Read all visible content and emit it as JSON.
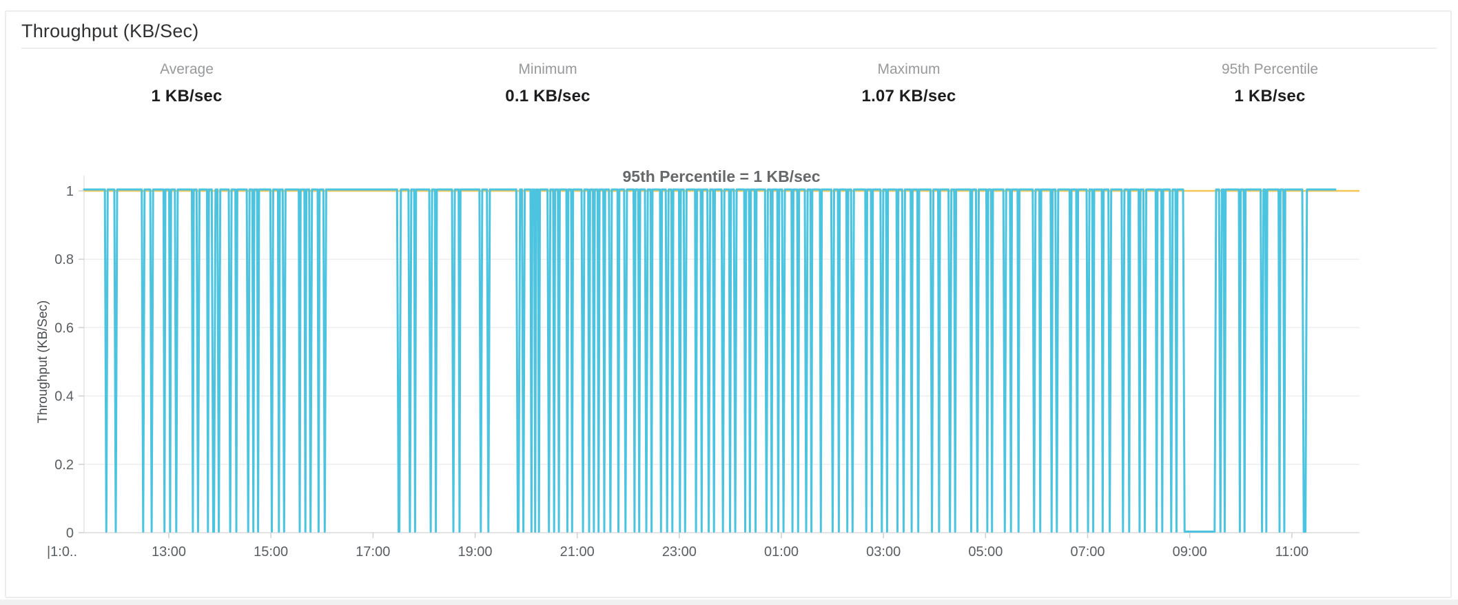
{
  "card": {
    "title": "Throughput (KB/Sec)"
  },
  "stats": [
    {
      "label": "Average",
      "value": "1 KB/sec"
    },
    {
      "label": "Minimum",
      "value": "0.1 KB/sec"
    },
    {
      "label": "Maximum",
      "value": "1.07 KB/sec"
    },
    {
      "label": "95th Percentile",
      "value": "1 KB/sec"
    }
  ],
  "chart_data": {
    "type": "line",
    "title": "",
    "annotation": "95th Percentile = 1 KB/sec",
    "xlabel": "",
    "ylabel": "Throughput (KB/Sec)",
    "ylim": [
      0,
      1.05
    ],
    "grid": "horizontal",
    "legend_position": "none",
    "y_ticks": [
      "1",
      "0.8",
      "0.6",
      "0.4",
      "0.2",
      "0"
    ],
    "y_tick_values": [
      1,
      0.8,
      0.6,
      0.4,
      0.2,
      0
    ],
    "x_ticks": [
      "|1:0..",
      "13:00",
      "15:00",
      "17:00",
      "19:00",
      "21:00",
      "23:00",
      "01:00",
      "03:00",
      "05:00",
      "07:00",
      "09:00",
      "11:00"
    ],
    "x_span_hours": 25,
    "percentile_line": {
      "value": 1,
      "color": "#f4c654"
    },
    "series": [
      {
        "name": "Throughput",
        "unit": "KB/sec",
        "color": "#4cc4e0",
        "high_value": 1.0,
        "low_value": 0.1,
        "description": "square-wave: alternates between ~1 KB/sec and ~0.1 KB/sec; runs are [minutes_at_high, minutes_at_low] pairs from ~11:04 to ~11:50 next day",
        "runs": [
          [
            22,
            3
          ],
          [
            7,
            3
          ],
          [
            26,
            3
          ],
          [
            6,
            3
          ],
          [
            11,
            2
          ],
          [
            4,
            2
          ],
          [
            4,
            3
          ],
          [
            15,
            2
          ],
          [
            3,
            3
          ],
          [
            8,
            2
          ],
          [
            3,
            4
          ],
          [
            2,
            3
          ],
          [
            9,
            3
          ],
          [
            4,
            2
          ],
          [
            10,
            3
          ],
          [
            3,
            2
          ],
          [
            3,
            2
          ],
          [
            12,
            3
          ],
          [
            5,
            2
          ],
          [
            3,
            3
          ],
          [
            14,
            2
          ],
          [
            4,
            2
          ],
          [
            3,
            3
          ],
          [
            6,
            2
          ],
          [
            4,
            3
          ],
          [
            75,
            4
          ],
          [
            8,
            3
          ],
          [
            3,
            2
          ],
          [
            14,
            3
          ],
          [
            3,
            2
          ],
          [
            16,
            3
          ],
          [
            4,
            2
          ],
          [
            20,
            3
          ],
          [
            5,
            3
          ],
          [
            28,
            4
          ],
          [
            2,
            3
          ],
          [
            6,
            2
          ],
          [
            2,
            2
          ],
          [
            2,
            2
          ],
          [
            8,
            3
          ],
          [
            3,
            2
          ],
          [
            3,
            2
          ],
          [
            7,
            2
          ],
          [
            3,
            2
          ],
          [
            9,
            3
          ],
          [
            4,
            2
          ],
          [
            3,
            2
          ],
          [
            3,
            2
          ],
          [
            4,
            2
          ],
          [
            4,
            3
          ],
          [
            6,
            2
          ],
          [
            5,
            3
          ],
          [
            7,
            2
          ],
          [
            3,
            2
          ],
          [
            5,
            3
          ],
          [
            3,
            2
          ],
          [
            8,
            2
          ],
          [
            4,
            3
          ],
          [
            3,
            2
          ],
          [
            6,
            2
          ],
          [
            3,
            3
          ],
          [
            9,
            2
          ],
          [
            4,
            2
          ],
          [
            5,
            3
          ],
          [
            3,
            2
          ],
          [
            7,
            3
          ],
          [
            5,
            2
          ],
          [
            3,
            3
          ],
          [
            8,
            2
          ],
          [
            3,
            2
          ],
          [
            4,
            2
          ],
          [
            9,
            3
          ],
          [
            3,
            2
          ],
          [
            5,
            2
          ],
          [
            3,
            3
          ],
          [
            7,
            2
          ],
          [
            4,
            2
          ],
          [
            6,
            3
          ],
          [
            3,
            2
          ],
          [
            8,
            2
          ],
          [
            10,
            3
          ],
          [
            4,
            2
          ],
          [
            7,
            2
          ],
          [
            3,
            3
          ],
          [
            12,
            2
          ],
          [
            4,
            2
          ],
          [
            8,
            3
          ],
          [
            3,
            2
          ],
          [
            9,
            2
          ],
          [
            4,
            3
          ],
          [
            6,
            2
          ],
          [
            5,
            2
          ],
          [
            12,
            3
          ],
          [
            5,
            2
          ],
          [
            9,
            3
          ],
          [
            3,
            2
          ],
          [
            15,
            2
          ],
          [
            4,
            3
          ],
          [
            8,
            2
          ],
          [
            3,
            2
          ],
          [
            11,
            3
          ],
          [
            4,
            2
          ],
          [
            6,
            2
          ],
          [
            14,
            3
          ],
          [
            4,
            2
          ],
          [
            10,
            2
          ],
          [
            3,
            3
          ],
          [
            12,
            2
          ],
          [
            5,
            2
          ],
          [
            9,
            3
          ],
          [
            3,
            2
          ],
          [
            8,
            2
          ],
          [
            5,
            3
          ],
          [
            11,
            3
          ],
          [
            4,
            2
          ],
          [
            9,
            2
          ],
          [
            3,
            3
          ],
          [
            10,
            2
          ],
          [
            4,
            2
          ],
          [
            7,
            3
          ],
          [
            3,
            2
          ],
          [
            6,
            35
          ],
          [
            3,
            3
          ],
          [
            2,
            2
          ],
          [
            14,
            2
          ],
          [
            3,
            2
          ],
          [
            16,
            3
          ],
          [
            2,
            2
          ],
          [
            12,
            2
          ],
          [
            3,
            2
          ],
          [
            18,
            5
          ],
          [
            30,
            0
          ]
        ]
      }
    ]
  },
  "colors": {
    "series_line": "#4cc4e0",
    "percentile_line": "#f4c654",
    "grid_line": "#eeeeee",
    "axis_line": "#e3e3e3",
    "tick_mark": "#d0d0d0",
    "card_border": "#ececec",
    "stat_label": "#97999b",
    "stat_value": "#1d1d1f"
  }
}
